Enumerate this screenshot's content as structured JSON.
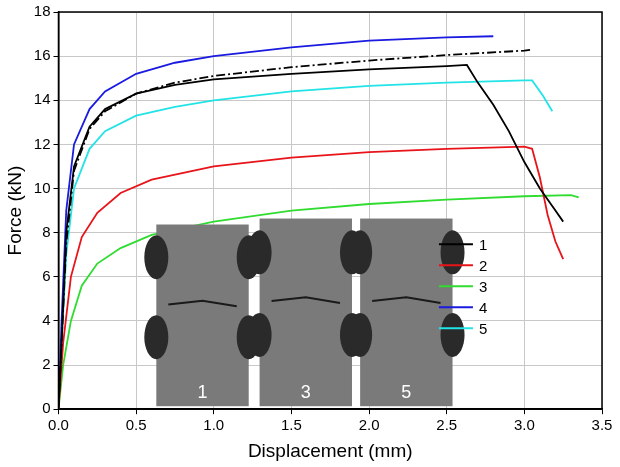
{
  "chart_data": {
    "type": "line",
    "x_label": "Displacement (mm)",
    "y_label": "Force (kN)",
    "xlim": [
      0,
      3.5
    ],
    "xticks": [
      {
        "value": 0,
        "label": "0.0"
      },
      0.5,
      {
        "value": 1,
        "label": "1.0"
      },
      1.5,
      {
        "value": 2,
        "label": "2.0"
      },
      2.5,
      {
        "value": 3,
        "label": "3.0"
      },
      3.5
    ],
    "ylim": [
      0,
      18
    ],
    "yticks": [
      0,
      2,
      4,
      6,
      8,
      10,
      12,
      14,
      16,
      18
    ],
    "grid": true,
    "legend": "lower right",
    "annotations": [
      "1",
      "3",
      "5"
    ],
    "series": [
      {
        "color": "#000000",
        "line_style": "dashdot",
        "marker": "none",
        "x": [
          0,
          0.02,
          0.05,
          0.1,
          0.2,
          0.3,
          0.5,
          0.75,
          1.0,
          1.5,
          2.0,
          2.5,
          3.0,
          3.05
        ],
        "values": [
          0,
          3,
          7.5,
          10.8,
          12.7,
          13.5,
          14.3,
          14.8,
          15.1,
          15.5,
          15.8,
          16.05,
          16.25,
          16.3
        ]
      },
      {
        "name": "1",
        "color": "#000000",
        "line_style": "solid",
        "marker": "none",
        "x": [
          0,
          0.02,
          0.05,
          0.1,
          0.2,
          0.3,
          0.5,
          0.75,
          1.0,
          1.5,
          2.0,
          2.5,
          2.63,
          2.7,
          2.8,
          2.9,
          3.0,
          3.1,
          3.2,
          3.25
        ],
        "values": [
          0,
          3,
          8,
          11,
          12.8,
          13.6,
          14.3,
          14.7,
          14.95,
          15.2,
          15.4,
          15.55,
          15.6,
          14.8,
          13.8,
          12.6,
          11.2,
          10.0,
          9.0,
          8.5
        ]
      },
      {
        "name": "2",
        "color": "#e8141a",
        "line_style": "solid",
        "marker": "none",
        "x": [
          0,
          0.03,
          0.08,
          0.15,
          0.25,
          0.4,
          0.6,
          1.0,
          1.5,
          2.0,
          2.5,
          3.0,
          3.05,
          3.1,
          3.15,
          3.2,
          3.25
        ],
        "values": [
          0,
          3,
          6,
          7.8,
          8.9,
          9.8,
          10.4,
          11.0,
          11.4,
          11.65,
          11.8,
          11.9,
          11.8,
          10.5,
          8.8,
          7.6,
          6.8
        ]
      },
      {
        "name": "3",
        "color": "#2fdc2f",
        "line_style": "solid",
        "marker": "none",
        "x": [
          0,
          0.03,
          0.08,
          0.15,
          0.25,
          0.4,
          0.6,
          1.0,
          1.5,
          2.0,
          2.5,
          3.0,
          3.3,
          3.35
        ],
        "values": [
          0,
          2,
          4,
          5.6,
          6.6,
          7.3,
          7.9,
          8.5,
          9.0,
          9.3,
          9.5,
          9.65,
          9.7,
          9.6
        ]
      },
      {
        "name": "4",
        "color": "#1a1ae0",
        "line_style": "solid",
        "marker": "none",
        "x": [
          0,
          0.02,
          0.05,
          0.1,
          0.2,
          0.3,
          0.5,
          0.75,
          1.0,
          1.5,
          2.0,
          2.5,
          2.8
        ],
        "values": [
          0,
          4,
          9,
          12,
          13.6,
          14.4,
          15.2,
          15.7,
          16.0,
          16.4,
          16.7,
          16.85,
          16.9
        ]
      },
      {
        "name": "5",
        "color": "#22e3e6",
        "line_style": "solid",
        "marker": "none",
        "x": [
          0,
          0.02,
          0.05,
          0.1,
          0.2,
          0.3,
          0.5,
          0.75,
          1.0,
          1.5,
          2.0,
          2.5,
          3.0,
          3.05,
          3.12,
          3.18
        ],
        "values": [
          0,
          3,
          7,
          10,
          11.8,
          12.6,
          13.3,
          13.7,
          14.0,
          14.4,
          14.65,
          14.8,
          14.9,
          14.9,
          14.2,
          13.5
        ]
      }
    ]
  }
}
